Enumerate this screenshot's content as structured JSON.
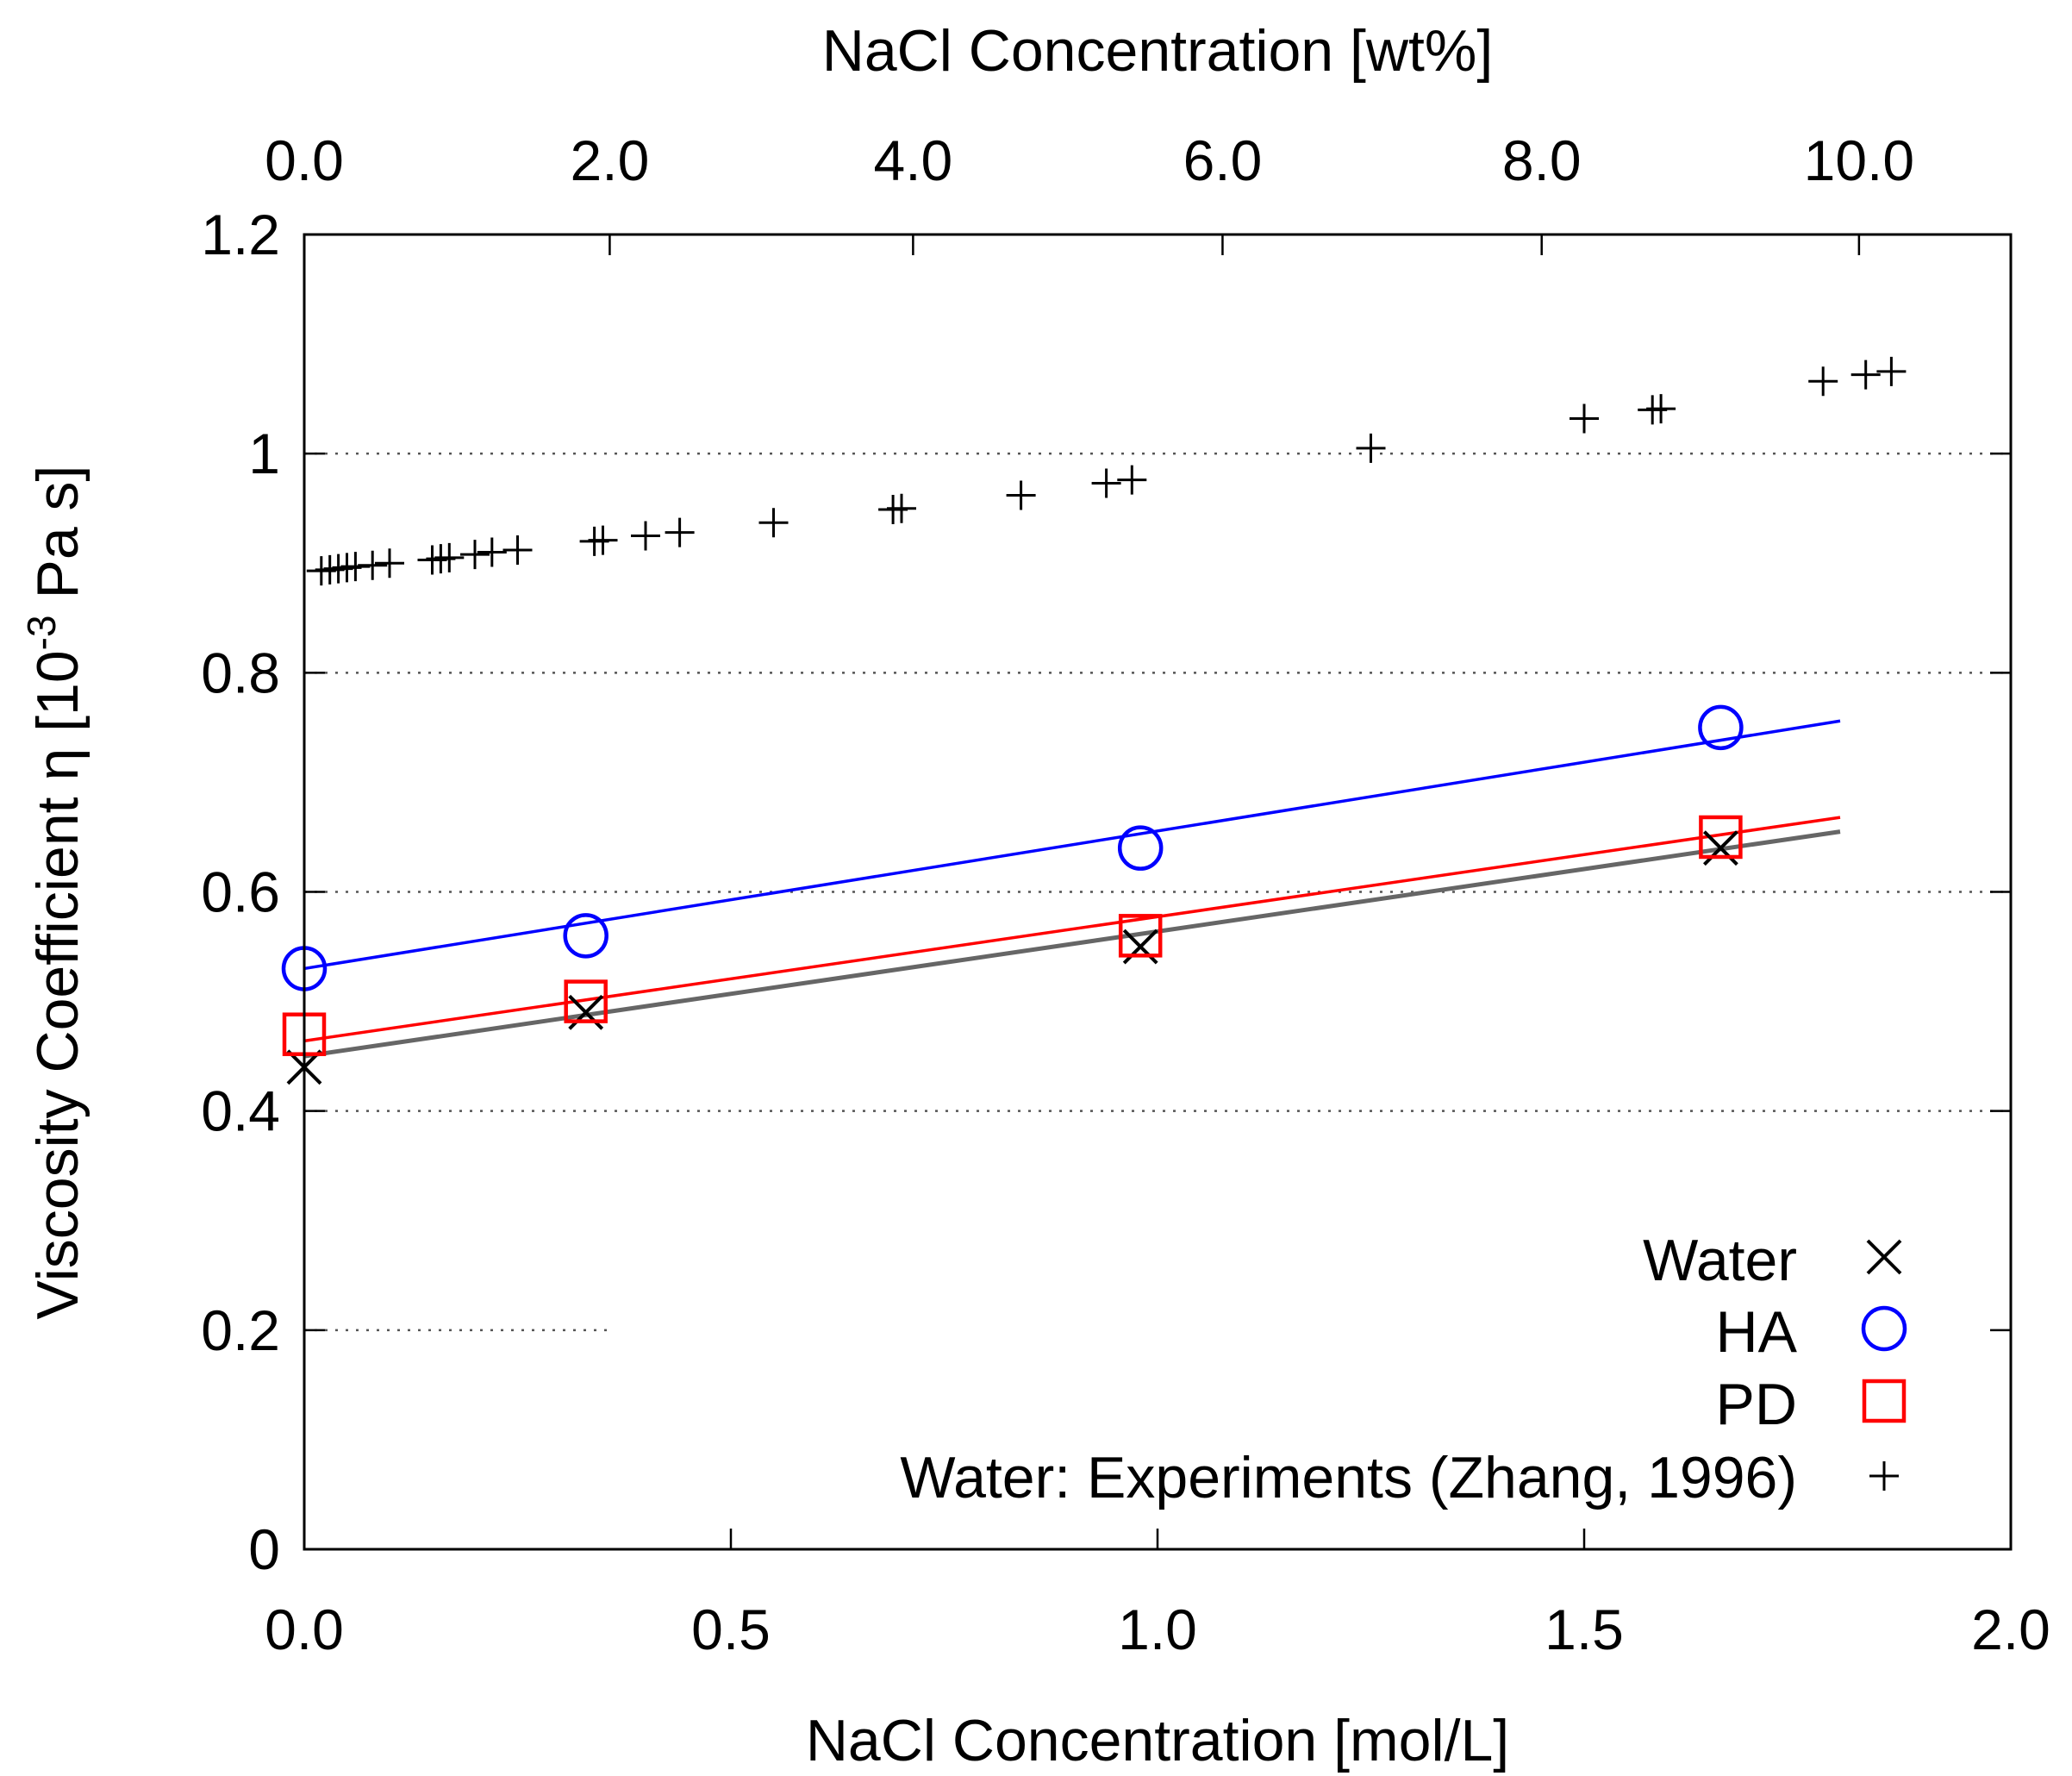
{
  "chart_data": {
    "type": "scatter",
    "xlabel": "NaCl Concentration  [mol/L]",
    "x2label": "NaCl Concentration  [wt%]",
    "ylabel": "Viscosity Coefficient  η  [10",
    "ylabel_exponent": "-3",
    "ylabel_suffix": " Pa s]",
    "xlim": [
      0.0,
      2.0
    ],
    "ylim": [
      0,
      1.2
    ],
    "x_ticks": [
      0.0,
      0.5,
      1.0,
      1.5,
      2.0
    ],
    "x_tick_labels": [
      "0.0",
      "0.5",
      "1.0",
      "1.5",
      "2.0"
    ],
    "y_ticks": [
      0,
      0.2,
      0.4,
      0.6,
      0.8,
      1.0,
      1.2
    ],
    "y_tick_labels": [
      "0",
      "0.2",
      "0.4",
      "0.6",
      "0.8",
      "1",
      "1.2"
    ],
    "x2_ticks_mol": [
      0.0,
      0.358,
      0.7135,
      1.0762,
      1.4502,
      1.8221
    ],
    "x2_tick_labels": [
      "0.0",
      "2.0",
      "4.0",
      "6.0",
      "8.0",
      "10.0"
    ],
    "grid": "dotted horizontal at y ticks",
    "legend_position": "bottom-right",
    "series": [
      {
        "name": "Water",
        "marker": "x",
        "color": "#000000",
        "x": [
          0.0,
          0.33,
          0.98,
          1.66
        ],
        "y": [
          0.44,
          0.49,
          0.55,
          0.64
        ],
        "fit": {
          "x": [
            0.0,
            1.8
          ],
          "y": [
            0.45,
            0.655
          ],
          "color": "#666666"
        }
      },
      {
        "name": "HA",
        "marker": "circle",
        "color": "#0000ff",
        "x": [
          0.0,
          0.33,
          0.98,
          1.66
        ],
        "y": [
          0.53,
          0.56,
          0.64,
          0.75
        ],
        "fit": {
          "x": [
            0.0,
            1.8
          ],
          "y": [
            0.53,
            0.756
          ],
          "color": "#0000ff"
        }
      },
      {
        "name": "PD",
        "marker": "square",
        "color": "#ff0000",
        "x": [
          0.0,
          0.33,
          0.98,
          1.66
        ],
        "y": [
          0.47,
          0.5,
          0.56,
          0.65
        ],
        "fit": {
          "x": [
            0.0,
            1.8
          ],
          "y": [
            0.464,
            0.668
          ],
          "color": "#ff0000"
        }
      },
      {
        "name": "Water: Experiments (Zhang, 1996)",
        "marker": "plus",
        "color": "#000000",
        "x": [
          0.02,
          0.03,
          0.04,
          0.05,
          0.06,
          0.08,
          0.1,
          0.15,
          0.16,
          0.17,
          0.2,
          0.22,
          0.25,
          0.34,
          0.35,
          0.4,
          0.44,
          0.55,
          0.69,
          0.7,
          0.84,
          0.94,
          0.97,
          1.25,
          1.5,
          1.58,
          1.59,
          1.78,
          1.83,
          1.86
        ],
        "y": [
          0.893,
          0.894,
          0.895,
          0.896,
          0.897,
          0.898,
          0.9,
          0.903,
          0.904,
          0.905,
          0.908,
          0.91,
          0.912,
          0.92,
          0.921,
          0.925,
          0.928,
          0.937,
          0.949,
          0.95,
          0.962,
          0.973,
          0.976,
          1.005,
          1.032,
          1.04,
          1.041,
          1.066,
          1.072,
          1.075
        ]
      }
    ]
  }
}
